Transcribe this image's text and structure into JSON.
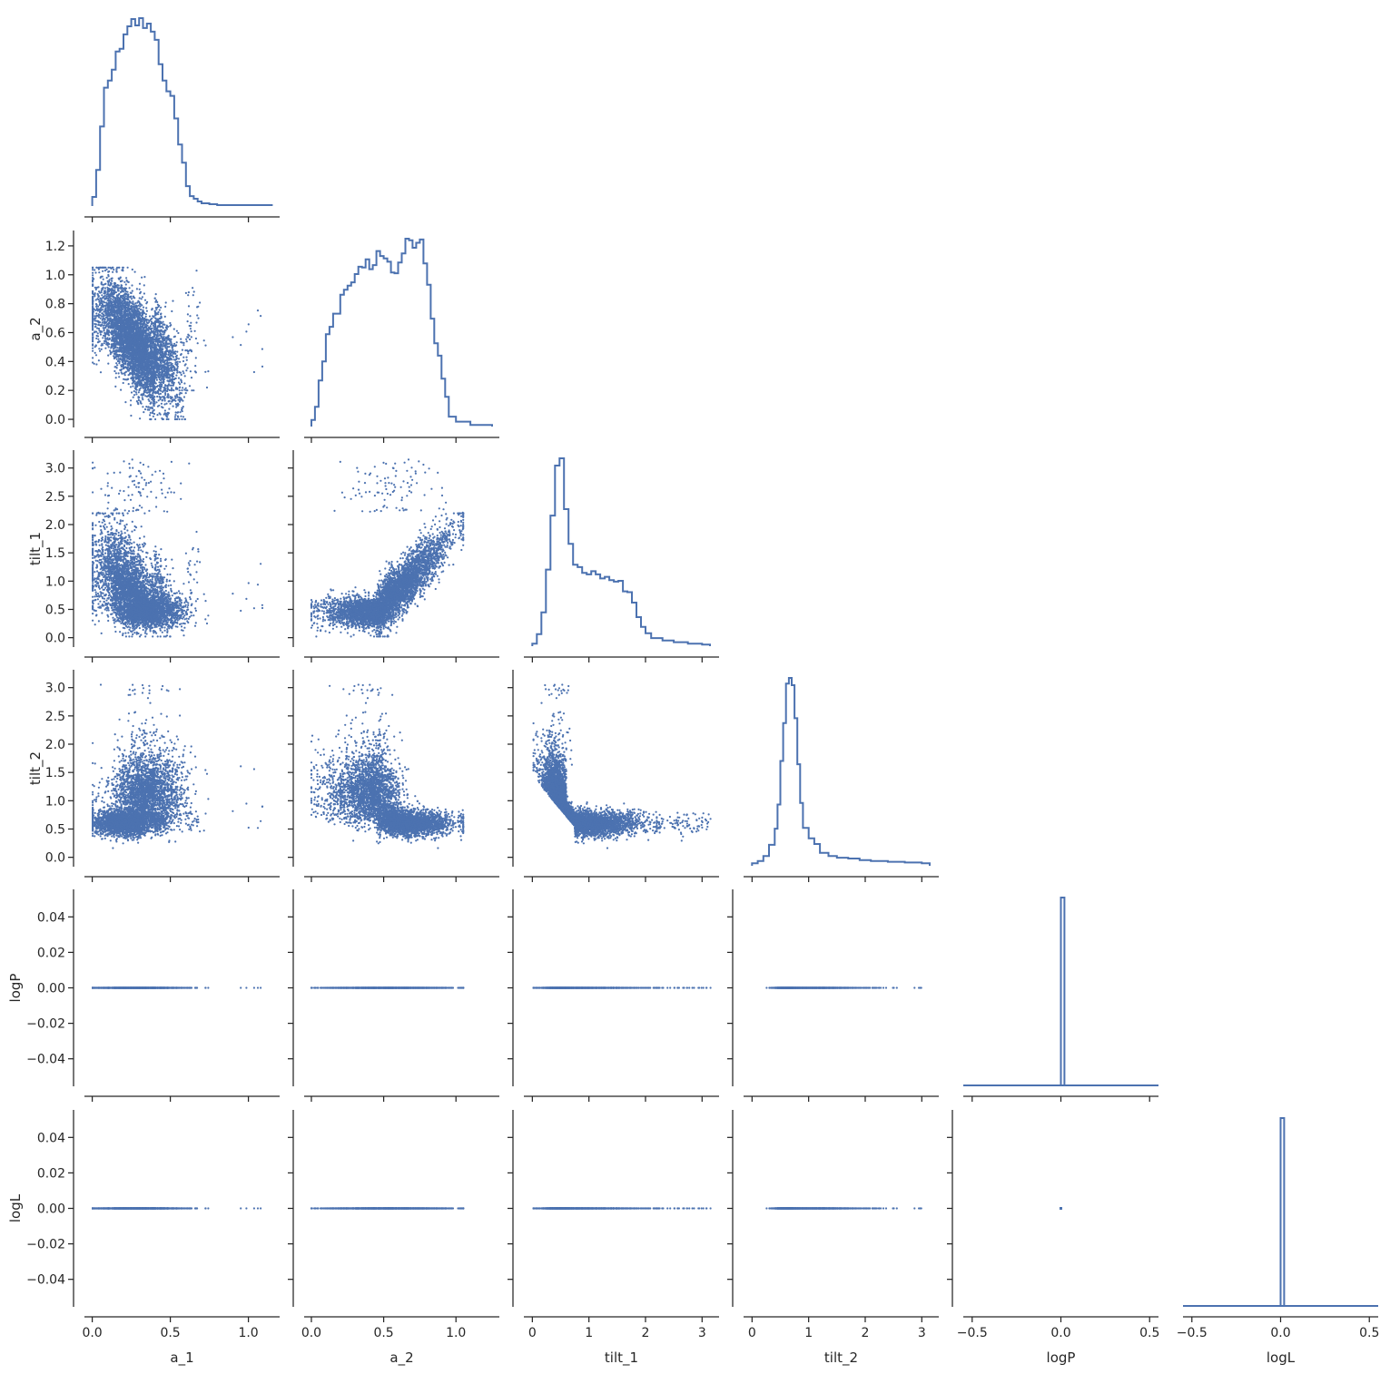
{
  "chart_data": {
    "type": "corner",
    "colors": {
      "series": "#4c72b0",
      "axis": "#262626",
      "background": "#ffffff"
    },
    "variables": [
      {
        "name": "a_1",
        "label": "a_1",
        "range": [
          -0.05,
          1.2
        ],
        "ticks": [
          0.0,
          0.5,
          1.0
        ],
        "tick_labels": [
          "0.0",
          "0.5",
          "1.0"
        ]
      },
      {
        "name": "a_2",
        "label": "a_2",
        "range": [
          -0.05,
          1.3
        ],
        "ticks": [
          0.0,
          0.5,
          1.0
        ],
        "tick_labels": [
          "0.0",
          "0.5",
          "1.0"
        ]
      },
      {
        "name": "tilt_1",
        "label": "tilt_1",
        "range": [
          -0.15,
          3.3
        ],
        "ticks": [
          0,
          1,
          2,
          3
        ],
        "tick_labels": [
          "0",
          "1",
          "2",
          "3"
        ]
      },
      {
        "name": "tilt_2",
        "label": "tilt_2",
        "range": [
          -0.15,
          3.3
        ],
        "ticks": [
          0,
          1,
          2,
          3
        ],
        "tick_labels": [
          "0",
          "1",
          "2",
          "3"
        ]
      },
      {
        "name": "logP",
        "label": "logP",
        "range": [
          -0.55,
          0.55
        ],
        "ticks": [
          -0.5,
          0.0,
          0.5
        ],
        "tick_labels": [
          "−0.5",
          "0.0",
          "0.5"
        ]
      },
      {
        "name": "logL",
        "label": "logL",
        "range": [
          -0.55,
          0.55
        ],
        "ticks": [
          -0.5,
          0.0,
          0.5
        ],
        "tick_labels": [
          "−0.5",
          "0.0",
          "0.5"
        ]
      }
    ],
    "row_axes": [
      null,
      {
        "range": [
          -0.05,
          1.3
        ],
        "ticks": [
          0.0,
          0.2,
          0.4,
          0.6,
          0.8,
          1.0,
          1.2
        ],
        "tick_labels": [
          "0.0",
          "0.2",
          "0.4",
          "0.6",
          "0.8",
          "1.0",
          "1.2"
        ]
      },
      {
        "range": [
          -0.15,
          3.3
        ],
        "ticks": [
          0.0,
          0.5,
          1.0,
          1.5,
          2.0,
          2.5,
          3.0
        ],
        "tick_labels": [
          "0.0",
          "0.5",
          "1.0",
          "1.5",
          "2.0",
          "2.5",
          "3.0"
        ]
      },
      {
        "range": [
          -0.15,
          3.3
        ],
        "ticks": [
          0.0,
          0.5,
          1.0,
          1.5,
          2.0,
          2.5,
          3.0
        ],
        "tick_labels": [
          "0.0",
          "0.5",
          "1.0",
          "1.5",
          "2.0",
          "2.5",
          "3.0"
        ]
      },
      {
        "range": [
          -0.055,
          0.055
        ],
        "ticks": [
          -0.04,
          -0.02,
          0.0,
          0.02,
          0.04
        ],
        "tick_labels": [
          "−0.04",
          "−0.02",
          "0.00",
          "0.02",
          "0.04"
        ]
      },
      {
        "range": [
          -0.055,
          0.055
        ],
        "ticks": [
          -0.04,
          -0.02,
          0.0,
          0.02,
          0.04
        ],
        "tick_labels": [
          "−0.04",
          "−0.02",
          "0.00",
          "0.02",
          "0.04"
        ]
      }
    ],
    "histograms": {
      "a_1": {
        "bin_edges": [
          0.0,
          0.025,
          0.05,
          0.075,
          0.1,
          0.125,
          0.15,
          0.175,
          0.2,
          0.225,
          0.25,
          0.275,
          0.3,
          0.325,
          0.35,
          0.375,
          0.4,
          0.425,
          0.45,
          0.475,
          0.5,
          0.525,
          0.55,
          0.575,
          0.6,
          0.625,
          0.65,
          0.675,
          0.7,
          0.75,
          0.8,
          0.9,
          1.0,
          1.15
        ],
        "counts": [
          10,
          40,
          88,
          131,
          139,
          151,
          171,
          174,
          190,
          199,
          207,
          200,
          208,
          197,
          202,
          193,
          184,
          157,
          139,
          127,
          122,
          97,
          68,
          48,
          22,
          11,
          8,
          5,
          3,
          2,
          1,
          1,
          1
        ]
      },
      "a_2": {
        "bin_edges": [
          0.0,
          0.025,
          0.05,
          0.075,
          0.1,
          0.125,
          0.15,
          0.175,
          0.2,
          0.225,
          0.25,
          0.275,
          0.3,
          0.325,
          0.35,
          0.375,
          0.4,
          0.425,
          0.45,
          0.475,
          0.5,
          0.525,
          0.55,
          0.575,
          0.6,
          0.625,
          0.65,
          0.675,
          0.7,
          0.725,
          0.75,
          0.775,
          0.8,
          0.825,
          0.85,
          0.875,
          0.9,
          0.925,
          0.95,
          1.0,
          1.1,
          1.25
        ],
        "counts": [
          8,
          24,
          56,
          79,
          112,
          121,
          137,
          137,
          160,
          166,
          171,
          175,
          185,
          194,
          193,
          203,
          191,
          196,
          213,
          207,
          204,
          200,
          187,
          186,
          199,
          210,
          228,
          226,
          217,
          223,
          227,
          198,
          172,
          131,
          101,
          86,
          58,
          36,
          12,
          6,
          2
        ]
      },
      "tilt_1": {
        "bin_edges": [
          0.0,
          0.08,
          0.16,
          0.24,
          0.32,
          0.4,
          0.48,
          0.56,
          0.64,
          0.72,
          0.8,
          0.88,
          0.96,
          1.04,
          1.12,
          1.2,
          1.28,
          1.36,
          1.44,
          1.52,
          1.6,
          1.68,
          1.76,
          1.84,
          1.92,
          2.0,
          2.1,
          2.3,
          2.5,
          2.75,
          3.0,
          3.14
        ],
        "counts": [
          3,
          15,
          42,
          95,
          162,
          224,
          233,
          170,
          127,
          101,
          98,
          91,
          89,
          93,
          89,
          84,
          86,
          82,
          80,
          81,
          68,
          67,
          54,
          36,
          24,
          16,
          10,
          7,
          5,
          3,
          2
        ]
      },
      "tilt_2": {
        "bin_edges": [
          0.0,
          0.1,
          0.2,
          0.3,
          0.4,
          0.45,
          0.5,
          0.55,
          0.6,
          0.65,
          0.7,
          0.75,
          0.8,
          0.85,
          0.9,
          1.0,
          1.1,
          1.2,
          1.35,
          1.5,
          1.7,
          1.9,
          2.1,
          2.4,
          2.7,
          3.0,
          3.14
        ],
        "counts": [
          3,
          6,
          12,
          26,
          46,
          76,
          130,
          177,
          226,
          233,
          224,
          183,
          126,
          78,
          47,
          34,
          27,
          16,
          12,
          10,
          9,
          7,
          6,
          5,
          4,
          3
        ]
      },
      "logP": {
        "bin_edges": [
          0.0,
          0.02
        ],
        "counts": [
          1
        ]
      },
      "logL": {
        "bin_edges": [
          0.0,
          0.02
        ],
        "counts": [
          1
        ]
      }
    },
    "scatter_note_values": "All logP and logL samples equal 0.00",
    "sample_count": 5000,
    "grid": false,
    "legend": "none",
    "title": ""
  }
}
